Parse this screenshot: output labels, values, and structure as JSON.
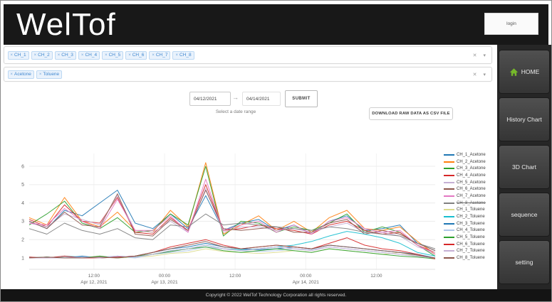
{
  "header": {
    "title": "WelTof",
    "login_label": "login"
  },
  "sidebar": {
    "items": [
      {
        "label": "HOME",
        "icon": "home",
        "icon_color": "#76b82a"
      },
      {
        "label": "History Chart"
      },
      {
        "label": "3D Chart"
      },
      {
        "label": "sequence"
      },
      {
        "label": "setting"
      }
    ]
  },
  "filters": {
    "channels": [
      "CH_1",
      "CH_2",
      "CH_3",
      "CH_4",
      "CH_5",
      "CH_6",
      "CH_7",
      "CH_8"
    ],
    "compounds": [
      "Acetone",
      "Toluene"
    ],
    "remove_icon": "×",
    "clear_icon": "✕",
    "caret_icon": "▾"
  },
  "date_range": {
    "start": "04/12/2021",
    "end": "04/14/2021",
    "arrow": "→",
    "submit_label": "SUBMIT",
    "hint": "Select a date range"
  },
  "download_button": "DOWNLOAD RAW DATA AS CSV FILE",
  "footer": {
    "copyright": "Copyright © 2022 WelTof Technology Corporation all rights reserved."
  },
  "chart_data": {
    "type": "line",
    "x_label_hours": [
      0,
      3,
      6,
      9,
      12,
      15,
      18,
      21,
      24,
      27,
      30,
      33,
      36,
      39,
      42,
      45,
      48,
      51,
      54,
      57,
      60,
      63,
      66,
      69
    ],
    "xlim": [
      0,
      69
    ],
    "ylim": [
      0.38,
      6.7
    ],
    "yticks": [
      1,
      2,
      3,
      4,
      5,
      6
    ],
    "xticks": [
      {
        "hour": 11,
        "time": "12:00",
        "date": "Apr 12, 2021"
      },
      {
        "hour": 23,
        "time": "00:00",
        "date": "Apr 13, 2021"
      },
      {
        "hour": 35,
        "time": "12:00",
        "date": ""
      },
      {
        "hour": 47,
        "time": "00:00",
        "date": "Apr 14, 2021"
      },
      {
        "hour": 59,
        "time": "12:00",
        "date": ""
      }
    ],
    "grid": true,
    "legend_position": "right",
    "series": [
      {
        "name": "CH_1_Acetone",
        "color": "#1f77b4",
        "struck": false,
        "values": [
          3.0,
          2.6,
          3.6,
          3.3,
          4.0,
          4.7,
          2.9,
          2.6,
          3.4,
          2.6,
          4.4,
          2.5,
          2.9,
          3.1,
          2.5,
          2.8,
          2.3,
          3.0,
          3.3,
          2.5,
          2.6,
          2.8,
          1.8,
          1.4
        ]
      },
      {
        "name": "CH_2_Acetone",
        "color": "#ff7f0e",
        "struck": false,
        "values": [
          3.2,
          2.8,
          4.3,
          3.0,
          2.7,
          3.5,
          2.5,
          2.4,
          3.6,
          2.7,
          6.2,
          2.3,
          2.8,
          3.3,
          2.5,
          3.0,
          2.4,
          3.2,
          3.6,
          2.6,
          2.5,
          2.7,
          1.9,
          1.2
        ]
      },
      {
        "name": "CH_3_Acetone",
        "color": "#2ca02c",
        "struck": false,
        "values": [
          2.8,
          3.4,
          4.1,
          2.9,
          2.6,
          3.2,
          2.4,
          2.5,
          3.4,
          2.8,
          6.0,
          2.2,
          3.0,
          2.9,
          2.4,
          2.7,
          2.5,
          2.9,
          3.4,
          2.4,
          2.7,
          2.4,
          1.7,
          1.1
        ]
      },
      {
        "name": "CH_4_Acetone",
        "color": "#d62728",
        "struck": false,
        "values": [
          3.1,
          2.7,
          3.9,
          3.0,
          2.9,
          4.3,
          2.4,
          2.3,
          3.2,
          2.5,
          5.0,
          2.5,
          2.6,
          2.8,
          2.6,
          2.5,
          2.3,
          2.8,
          3.0,
          2.5,
          2.3,
          2.4,
          1.7,
          1.3
        ]
      },
      {
        "name": "CH_5_Acetone",
        "color": "#c5b0d5",
        "struck": false,
        "values": [
          2.9,
          2.7,
          3.4,
          3.1,
          2.8,
          4.4,
          2.5,
          2.4,
          3.0,
          2.4,
          4.8,
          2.4,
          2.7,
          2.7,
          2.5,
          2.6,
          2.4,
          2.7,
          2.9,
          2.4,
          2.4,
          2.2,
          1.6,
          1.3
        ]
      },
      {
        "name": "CH_6_Acetone",
        "color": "#8c564b",
        "struck": false,
        "values": [
          3.0,
          2.6,
          3.5,
          2.8,
          2.7,
          4.5,
          2.3,
          2.2,
          3.1,
          2.5,
          4.7,
          2.6,
          2.5,
          2.6,
          2.7,
          2.4,
          2.4,
          2.9,
          3.1,
          2.3,
          2.5,
          2.3,
          1.8,
          1.4
        ]
      },
      {
        "name": "CH_7_Acetone",
        "color": "#e377c2",
        "struck": false,
        "values": [
          2.9,
          2.8,
          3.7,
          3.0,
          2.6,
          4.2,
          2.5,
          2.5,
          3.3,
          2.4,
          5.3,
          2.5,
          2.8,
          3.0,
          2.4,
          2.8,
          2.3,
          3.0,
          3.2,
          2.6,
          2.4,
          2.5,
          1.7,
          1.2
        ]
      },
      {
        "name": "CH_8_Acetone",
        "color": "#7f7f7f",
        "struck": true,
        "values": [
          2.6,
          2.3,
          2.9,
          2.5,
          2.3,
          2.6,
          2.1,
          2.0,
          2.8,
          2.7,
          3.4,
          2.8,
          2.9,
          2.8,
          2.7,
          2.6,
          2.5,
          2.7,
          2.6,
          2.4,
          2.3,
          2.2,
          1.8,
          1.5
        ]
      },
      {
        "name": "CH_1_Toluene",
        "color": "#dbdb8d",
        "struck": false,
        "values": [
          1.0,
          1.0,
          1.05,
          1.0,
          1.1,
          1.0,
          1.05,
          1.1,
          1.25,
          1.3,
          1.5,
          1.35,
          1.3,
          1.25,
          1.3,
          1.4,
          1.3,
          1.5,
          1.4,
          1.3,
          1.2,
          1.3,
          1.1,
          1.0
        ]
      },
      {
        "name": "CH_2_Toluene",
        "color": "#17becf",
        "struck": false,
        "values": [
          1.05,
          1.0,
          1.1,
          1.05,
          1.0,
          1.1,
          1.05,
          1.2,
          1.4,
          1.5,
          1.7,
          1.5,
          1.45,
          1.5,
          1.6,
          1.7,
          1.9,
          2.2,
          2.45,
          2.3,
          2.1,
          1.8,
          1.3,
          1.1
        ]
      },
      {
        "name": "CH_3_Toluene",
        "color": "#1f77b4",
        "struck": false,
        "values": [
          1.0,
          1.05,
          1.0,
          1.1,
          1.0,
          1.05,
          1.1,
          1.3,
          1.5,
          1.6,
          1.8,
          1.6,
          1.5,
          1.45,
          1.5,
          1.6,
          1.5,
          1.7,
          1.6,
          1.5,
          1.4,
          1.3,
          1.2,
          1.0
        ]
      },
      {
        "name": "CH_4_Toluene",
        "color": "#aec7e8",
        "struck": false,
        "values": [
          1.0,
          1.0,
          1.05,
          1.0,
          1.05,
          1.1,
          1.0,
          1.2,
          1.3,
          1.4,
          1.6,
          1.5,
          1.4,
          1.35,
          1.4,
          1.5,
          1.45,
          1.6,
          1.5,
          1.4,
          1.3,
          1.2,
          1.1,
          1.0
        ]
      },
      {
        "name": "CH_5_Toluene",
        "color": "#2ca02c",
        "struck": false,
        "values": [
          1.0,
          1.05,
          1.0,
          1.0,
          1.1,
          1.0,
          1.1,
          1.2,
          1.35,
          1.5,
          1.6,
          1.4,
          1.3,
          1.4,
          1.5,
          1.4,
          1.3,
          1.5,
          1.4,
          1.3,
          1.2,
          1.1,
          1.05,
          0.95
        ]
      },
      {
        "name": "CH_6_Toluene",
        "color": "#d62728",
        "struck": false,
        "values": [
          1.05,
          1.0,
          1.1,
          1.0,
          1.0,
          1.05,
          1.1,
          1.3,
          1.6,
          1.8,
          2.0,
          1.7,
          1.5,
          1.6,
          1.7,
          1.6,
          1.5,
          1.8,
          2.1,
          1.7,
          1.5,
          1.4,
          1.2,
          0.95
        ]
      },
      {
        "name": "CH_7_Toluene",
        "color": "#c5b0d5",
        "struck": false,
        "values": [
          1.0,
          1.0,
          1.0,
          1.05,
          1.0,
          1.1,
          1.05,
          1.2,
          1.4,
          1.5,
          1.7,
          1.5,
          1.4,
          1.5,
          1.6,
          1.5,
          1.4,
          1.6,
          1.5,
          1.4,
          1.3,
          1.2,
          1.1,
          1.0
        ]
      },
      {
        "name": "CH_8_Toluene",
        "color": "#8c564b",
        "struck": false,
        "values": [
          1.0,
          1.05,
          1.0,
          1.0,
          1.05,
          1.0,
          1.1,
          1.3,
          1.5,
          1.7,
          1.9,
          1.6,
          1.5,
          1.6,
          1.7,
          1.6,
          1.5,
          1.7,
          1.6,
          1.5,
          1.4,
          1.3,
          1.15,
          1.0
        ]
      }
    ]
  }
}
